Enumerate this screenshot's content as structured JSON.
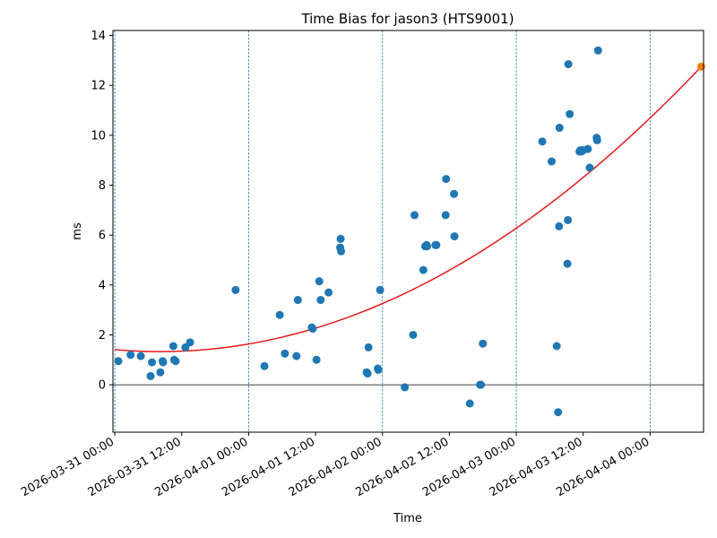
{
  "chart_data": {
    "type": "scatter",
    "title": "Time Bias for jason3 (HTS9001)",
    "xlabel": "Time",
    "ylabel": "ms",
    "x_ticks": [
      "2026-03-31 00:00",
      "2026-03-31 12:00",
      "2026-04-01 00:00",
      "2026-04-01 12:00",
      "2026-04-02 00:00",
      "2026-04-02 12:00",
      "2026-04-03 00:00",
      "2026-04-03 12:00",
      "2026-04-04 00:00"
    ],
    "y_ticks": [
      "0",
      "2",
      "4",
      "6",
      "8",
      "10",
      "12",
      "14"
    ],
    "xlim": [
      "2026-03-30 23:40",
      "2026-04-04 09:35"
    ],
    "ylim": [
      -1.9,
      14.2
    ],
    "day_lines": [
      "2026-03-31 00:00",
      "2026-04-01 00:00",
      "2026-04-02 00:00",
      "2026-04-03 00:00",
      "2026-04-04 00:00"
    ],
    "zero_line": 0,
    "colors": {
      "points": "#1f77b4",
      "fit": "#e41a1c",
      "prediction": "#ff7f0e",
      "day_lines": "#1f77b4",
      "zero_line": "#000000"
    },
    "fit": {
      "type": "quadratic",
      "min": [
        "2026-03-31 08:10",
        1.33
      ],
      "start": [
        "2026-03-31 00:00",
        1.45
      ],
      "end": [
        "2026-04-04 09:10",
        12.75
      ]
    },
    "prediction_point": {
      "x": "2026-04-04 09:10",
      "y": 12.75
    },
    "points": [
      {
        "x": "2026-03-31 00:38",
        "y": 0.95
      },
      {
        "x": "2026-03-31 02:50",
        "y": 1.2
      },
      {
        "x": "2026-03-31 04:40",
        "y": 1.15
      },
      {
        "x": "2026-03-31 06:25",
        "y": 0.35
      },
      {
        "x": "2026-03-31 06:40",
        "y": 0.9
      },
      {
        "x": "2026-03-31 08:10",
        "y": 0.5
      },
      {
        "x": "2026-03-31 08:35",
        "y": 0.95
      },
      {
        "x": "2026-03-31 08:40",
        "y": 0.9
      },
      {
        "x": "2026-03-31 10:30",
        "y": 1.55
      },
      {
        "x": "2026-03-31 10:40",
        "y": 1.0
      },
      {
        "x": "2026-03-31 10:55",
        "y": 0.95
      },
      {
        "x": "2026-03-31 12:40",
        "y": 1.5
      },
      {
        "x": "2026-03-31 13:30",
        "y": 1.7
      },
      {
        "x": "2026-03-31 21:40",
        "y": 3.8
      },
      {
        "x": "2026-04-01 02:50",
        "y": 0.75
      },
      {
        "x": "2026-04-01 05:35",
        "y": 2.8
      },
      {
        "x": "2026-04-01 06:30",
        "y": 1.25
      },
      {
        "x": "2026-04-01 08:35",
        "y": 1.15
      },
      {
        "x": "2026-04-01 08:50",
        "y": 3.4
      },
      {
        "x": "2026-04-01 11:20",
        "y": 2.3
      },
      {
        "x": "2026-04-01 11:30",
        "y": 2.25
      },
      {
        "x": "2026-04-01 12:10",
        "y": 1.0
      },
      {
        "x": "2026-04-01 12:40",
        "y": 4.15
      },
      {
        "x": "2026-04-01 12:55",
        "y": 3.4
      },
      {
        "x": "2026-04-01 14:20",
        "y": 3.7
      },
      {
        "x": "2026-04-01 16:25",
        "y": 5.5
      },
      {
        "x": "2026-04-01 16:30",
        "y": 5.85
      },
      {
        "x": "2026-04-01 16:35",
        "y": 5.35
      },
      {
        "x": "2026-04-01 21:10",
        "y": 0.5
      },
      {
        "x": "2026-04-01 21:20",
        "y": 0.45
      },
      {
        "x": "2026-04-01 21:30",
        "y": 1.5
      },
      {
        "x": "2026-04-01 23:10",
        "y": 0.65
      },
      {
        "x": "2026-04-01 23:15",
        "y": 0.6
      },
      {
        "x": "2026-04-01 23:35",
        "y": 3.8
      },
      {
        "x": "2026-04-02 04:00",
        "y": -0.1
      },
      {
        "x": "2026-04-02 05:30",
        "y": 2.0
      },
      {
        "x": "2026-04-02 05:45",
        "y": 6.8
      },
      {
        "x": "2026-04-02 07:20",
        "y": 4.6
      },
      {
        "x": "2026-04-02 07:40",
        "y": 5.55
      },
      {
        "x": "2026-04-02 07:55",
        "y": 5.6
      },
      {
        "x": "2026-04-02 08:00",
        "y": 5.55
      },
      {
        "x": "2026-04-02 09:30",
        "y": 5.6
      },
      {
        "x": "2026-04-02 09:40",
        "y": 5.6
      },
      {
        "x": "2026-04-02 11:20",
        "y": 6.8
      },
      {
        "x": "2026-04-02 11:25",
        "y": 8.25
      },
      {
        "x": "2026-04-02 12:50",
        "y": 7.65
      },
      {
        "x": "2026-04-02 12:55",
        "y": 5.95
      },
      {
        "x": "2026-04-02 15:40",
        "y": -0.75
      },
      {
        "x": "2026-04-02 17:30",
        "y": 0.0
      },
      {
        "x": "2026-04-02 17:40",
        "y": 0.0
      },
      {
        "x": "2026-04-02 18:00",
        "y": 1.65
      },
      {
        "x": "2026-04-03 04:40",
        "y": 9.75
      },
      {
        "x": "2026-04-03 06:20",
        "y": 8.95
      },
      {
        "x": "2026-04-03 07:15",
        "y": 1.55
      },
      {
        "x": "2026-04-03 07:30",
        "y": -1.1
      },
      {
        "x": "2026-04-03 07:40",
        "y": 6.35
      },
      {
        "x": "2026-04-03 07:45",
        "y": 10.3
      },
      {
        "x": "2026-04-03 09:10",
        "y": 4.85
      },
      {
        "x": "2026-04-03 09:15",
        "y": 6.6
      },
      {
        "x": "2026-04-03 09:20",
        "y": 12.85
      },
      {
        "x": "2026-04-03 09:35",
        "y": 10.85
      },
      {
        "x": "2026-04-03 11:20",
        "y": 9.35
      },
      {
        "x": "2026-04-03 11:30",
        "y": 9.4
      },
      {
        "x": "2026-04-03 11:40",
        "y": 9.35
      },
      {
        "x": "2026-04-03 11:50",
        "y": 9.4
      },
      {
        "x": "2026-04-03 12:00",
        "y": 9.4
      },
      {
        "x": "2026-04-03 12:50",
        "y": 9.45
      },
      {
        "x": "2026-04-03 13:10",
        "y": 8.7
      },
      {
        "x": "2026-04-03 14:25",
        "y": 9.9
      },
      {
        "x": "2026-04-03 14:30",
        "y": 9.8
      },
      {
        "x": "2026-04-03 14:40",
        "y": 13.4
      }
    ]
  }
}
